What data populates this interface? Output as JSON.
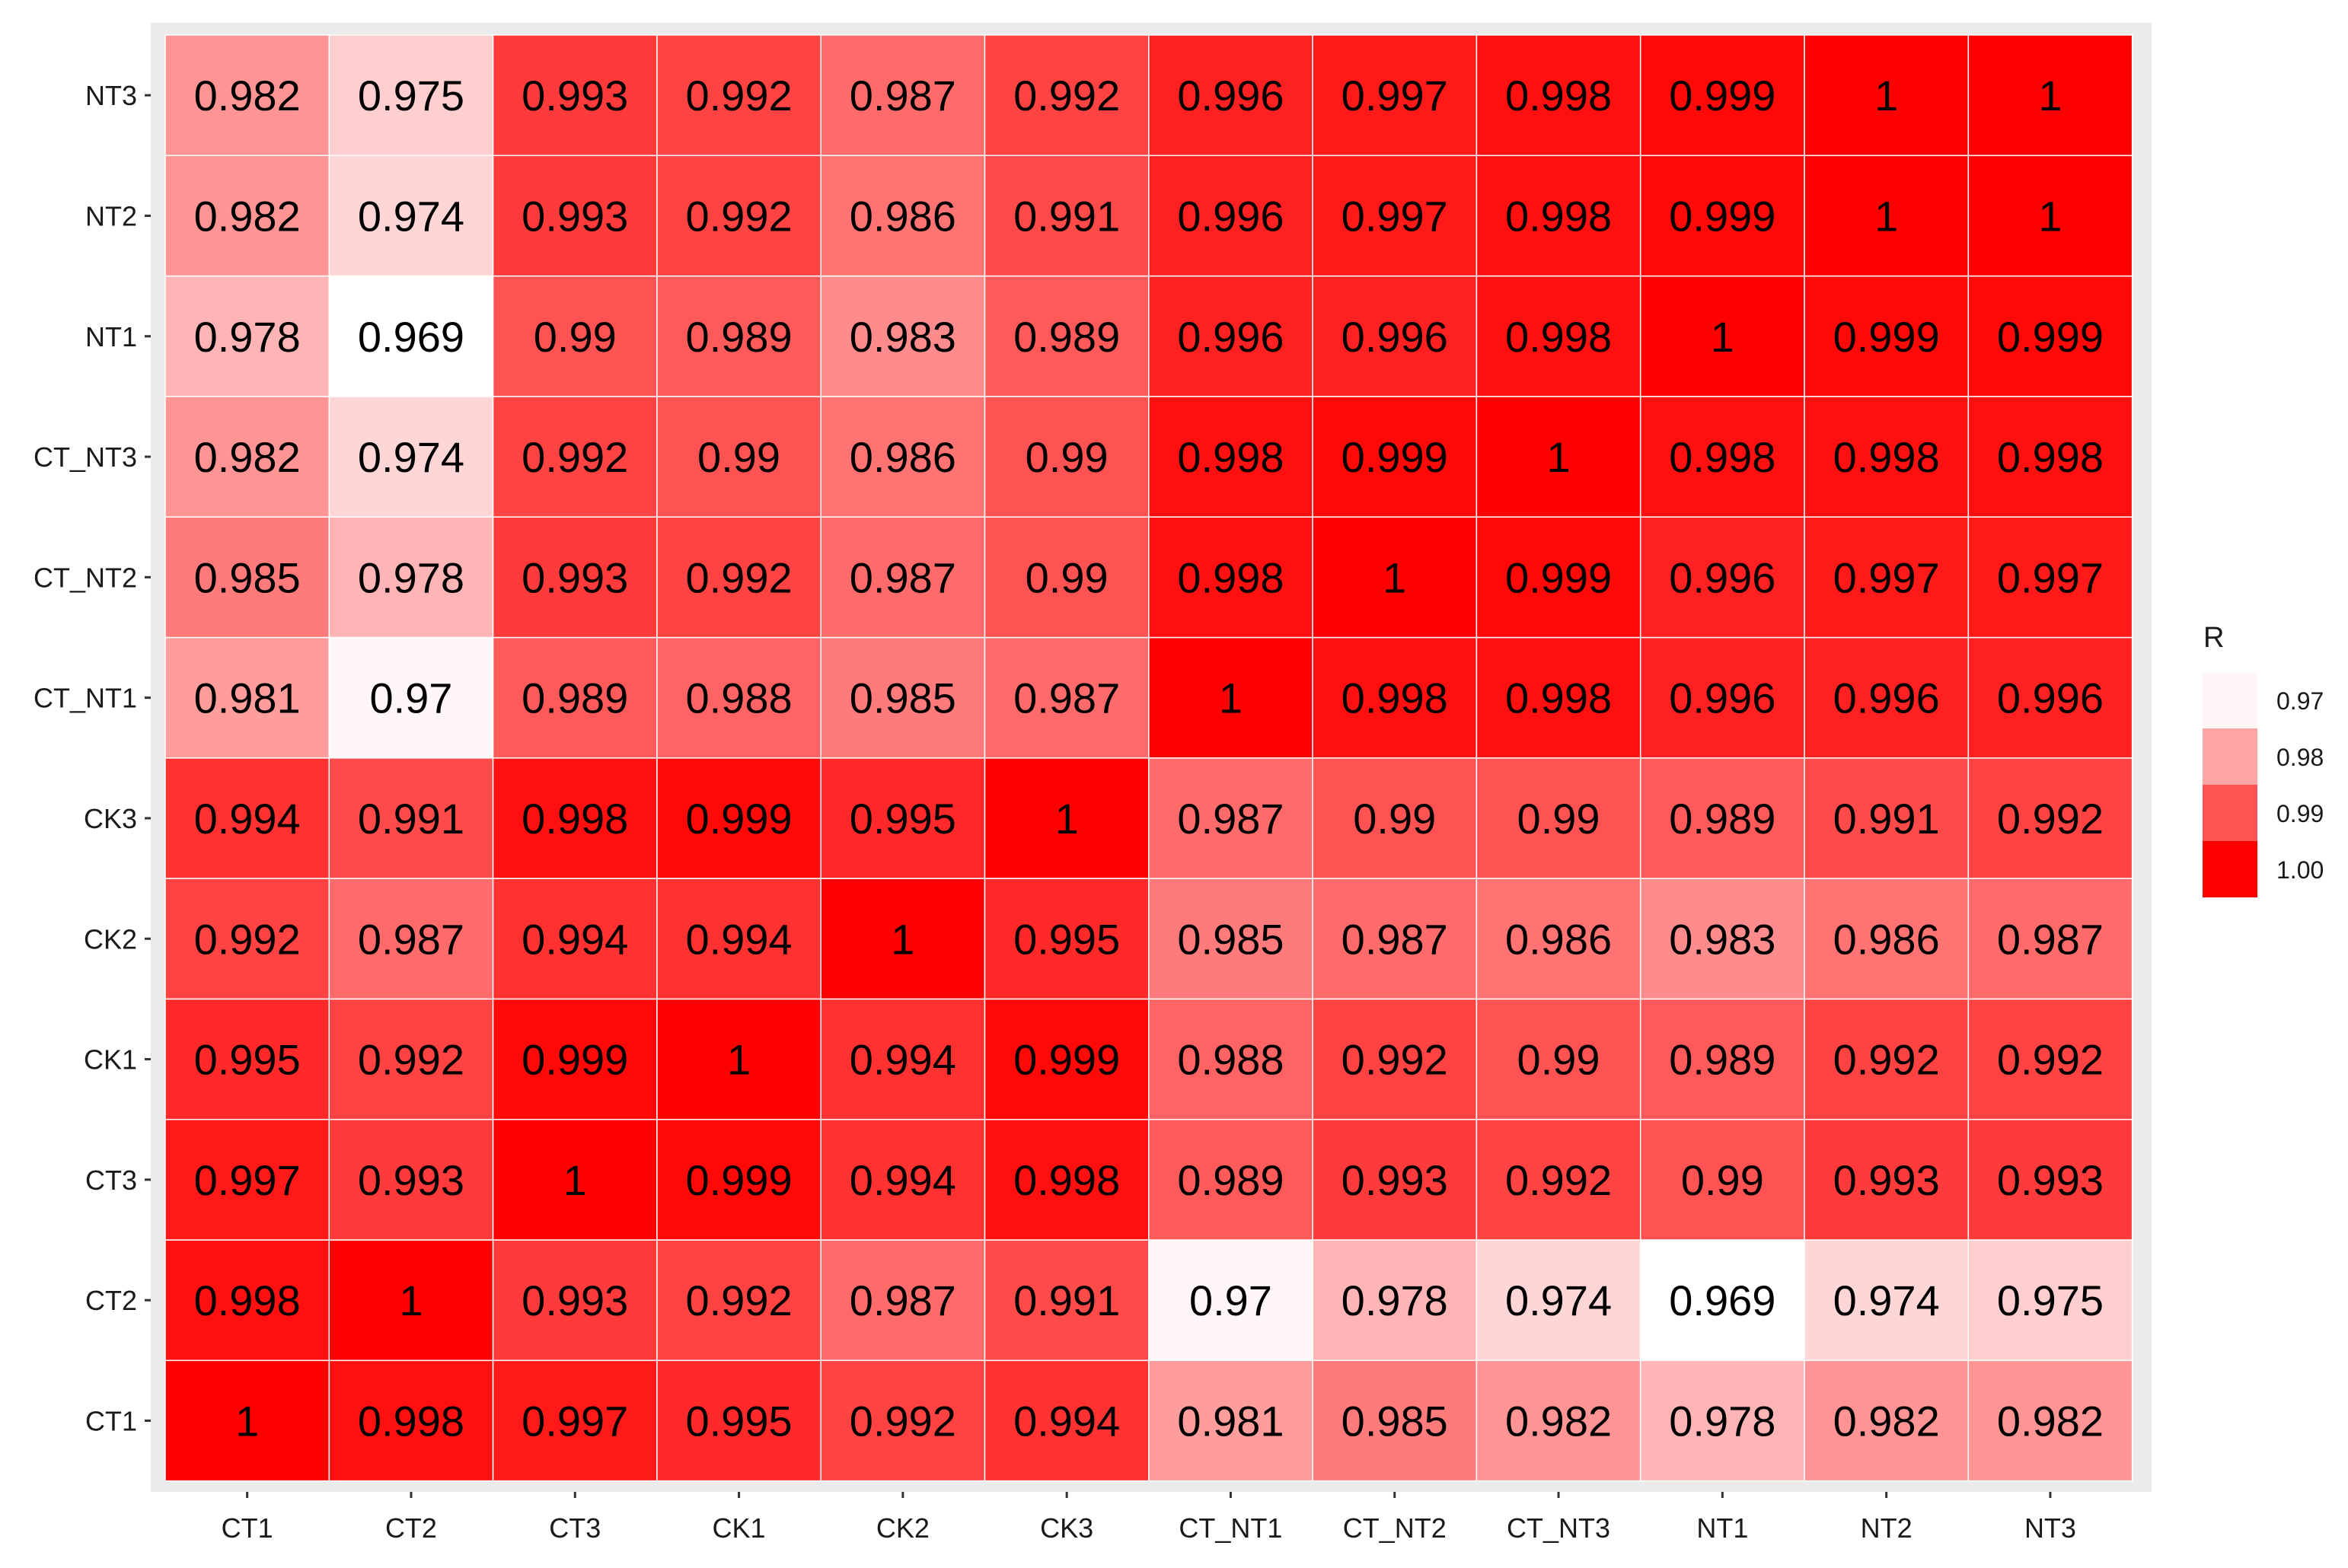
{
  "chart_data": {
    "type": "heatmap",
    "title": "",
    "xlabel": "",
    "ylabel": "",
    "x_categories": [
      "CT1",
      "CT2",
      "CT3",
      "CK1",
      "CK2",
      "CK3",
      "CT_NT1",
      "CT_NT2",
      "CT_NT3",
      "NT1",
      "NT2",
      "NT3"
    ],
    "y_categories": [
      "CT1",
      "CT2",
      "CT3",
      "CK1",
      "CK2",
      "CK3",
      "CT_NT1",
      "CT_NT2",
      "CT_NT3",
      "NT1",
      "NT2",
      "NT3"
    ],
    "values": [
      [
        "1",
        "0.998",
        "0.997",
        "0.995",
        "0.992",
        "0.994",
        "0.981",
        "0.985",
        "0.982",
        "0.978",
        "0.982",
        "0.982"
      ],
      [
        "0.998",
        "1",
        "0.993",
        "0.992",
        "0.987",
        "0.991",
        "0.97",
        "0.978",
        "0.974",
        "0.969",
        "0.974",
        "0.975"
      ],
      [
        "0.997",
        "0.993",
        "1",
        "0.999",
        "0.994",
        "0.998",
        "0.989",
        "0.993",
        "0.992",
        "0.99",
        "0.993",
        "0.993"
      ],
      [
        "0.995",
        "0.992",
        "0.999",
        "1",
        "0.994",
        "0.999",
        "0.988",
        "0.992",
        "0.99",
        "0.989",
        "0.992",
        "0.992"
      ],
      [
        "0.992",
        "0.987",
        "0.994",
        "0.994",
        "1",
        "0.995",
        "0.985",
        "0.987",
        "0.986",
        "0.983",
        "0.986",
        "0.987"
      ],
      [
        "0.994",
        "0.991",
        "0.998",
        "0.999",
        "0.995",
        "1",
        "0.987",
        "0.99",
        "0.99",
        "0.989",
        "0.991",
        "0.992"
      ],
      [
        "0.981",
        "0.97",
        "0.989",
        "0.988",
        "0.985",
        "0.987",
        "1",
        "0.998",
        "0.998",
        "0.996",
        "0.996",
        "0.996"
      ],
      [
        "0.985",
        "0.978",
        "0.993",
        "0.992",
        "0.987",
        "0.99",
        "0.998",
        "1",
        "0.999",
        "0.996",
        "0.997",
        "0.997"
      ],
      [
        "0.982",
        "0.974",
        "0.992",
        "0.99",
        "0.986",
        "0.99",
        "0.998",
        "0.999",
        "1",
        "0.998",
        "0.998",
        "0.998"
      ],
      [
        "0.978",
        "0.969",
        "0.99",
        "0.989",
        "0.983",
        "0.989",
        "0.996",
        "0.996",
        "0.998",
        "1",
        "0.999",
        "0.999"
      ],
      [
        "0.982",
        "0.974",
        "0.993",
        "0.992",
        "0.986",
        "0.991",
        "0.996",
        "0.997",
        "0.998",
        "0.999",
        "1",
        "1"
      ],
      [
        "0.982",
        "0.975",
        "0.993",
        "0.992",
        "0.987",
        "0.992",
        "0.996",
        "0.997",
        "0.998",
        "0.999",
        "1",
        "1"
      ]
    ],
    "value_range": [
      0.969,
      1.0
    ],
    "legend": {
      "title": "R",
      "position": "right",
      "ticks": [
        "0.97",
        "0.98",
        "0.99",
        "1.00"
      ]
    },
    "colors": {
      "low": "#ffffff",
      "high": "#ff0000",
      "panel_background": "#ebebeb",
      "tile_border": "#ffffff",
      "text": "#000000",
      "axis_text": "#1a1a1a",
      "tick_mark": "#333333"
    },
    "grid": false
  }
}
